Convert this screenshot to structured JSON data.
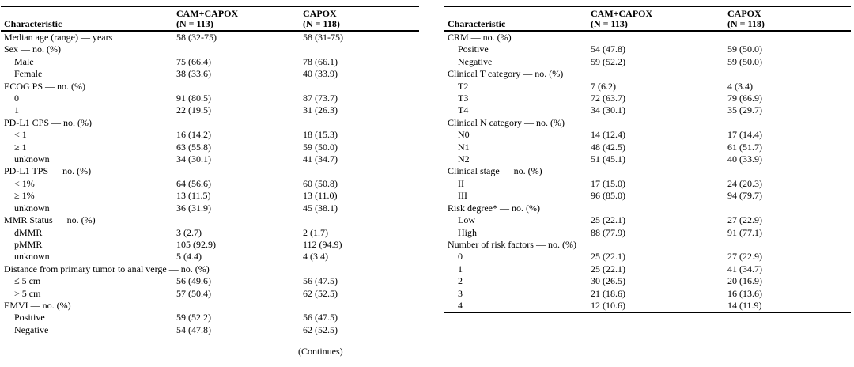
{
  "page": {
    "background": "#ffffff",
    "text_color": "#000000",
    "rule_color": "#000000"
  },
  "left_table": {
    "header": {
      "characteristic": "Characteristic",
      "arm1": [
        "CAM+CAPOX",
        "(N = 113)"
      ],
      "arm2": [
        "CAPOX",
        "(N = 118)"
      ]
    },
    "rows": [
      {
        "label": "Median age (range) — years",
        "indent": 0,
        "values": [
          "58 (32-75)",
          "58 (31-75)"
        ]
      },
      {
        "label": "Sex — no. (%)",
        "indent": 0,
        "values": [
          "",
          ""
        ]
      },
      {
        "label": "Male",
        "indent": 1,
        "values": [
          "75 (66.4)",
          "78 (66.1)"
        ]
      },
      {
        "label": "Female",
        "indent": 1,
        "values": [
          "38 (33.6)",
          "40 (33.9)"
        ]
      },
      {
        "label": "ECOG PS — no. (%)",
        "indent": 0,
        "values": [
          "",
          ""
        ]
      },
      {
        "label": "0",
        "indent": 1,
        "values": [
          "91 (80.5)",
          "87 (73.7)"
        ]
      },
      {
        "label": "1",
        "indent": 1,
        "values": [
          "22 (19.5)",
          "31 (26.3)"
        ]
      },
      {
        "label": "PD-L1 CPS — no. (%)",
        "indent": 0,
        "values": [
          "",
          ""
        ]
      },
      {
        "label": "< 1",
        "indent": 1,
        "values": [
          "16 (14.2)",
          "18 (15.3)"
        ]
      },
      {
        "label": "≥ 1",
        "indent": 1,
        "values": [
          "63 (55.8)",
          "59 (50.0)"
        ]
      },
      {
        "label": "unknown",
        "indent": 1,
        "values": [
          "34 (30.1)",
          "41 (34.7)"
        ]
      },
      {
        "label": "PD-L1 TPS — no. (%)",
        "indent": 0,
        "values": [
          "",
          ""
        ]
      },
      {
        "label": "< 1%",
        "indent": 1,
        "values": [
          "64 (56.6)",
          "60 (50.8)"
        ]
      },
      {
        "label": "≥ 1%",
        "indent": 1,
        "values": [
          "13 (11.5)",
          "13 (11.0)"
        ]
      },
      {
        "label": "unknown",
        "indent": 1,
        "values": [
          "36 (31.9)",
          "45 (38.1)"
        ]
      },
      {
        "label": "MMR Status — no. (%)",
        "indent": 0,
        "values": [
          "",
          ""
        ]
      },
      {
        "label": "dMMR",
        "indent": 1,
        "values": [
          "3 (2.7)",
          "2 (1.7)"
        ]
      },
      {
        "label": "pMMR",
        "indent": 1,
        "values": [
          "105 (92.9)",
          "112 (94.9)"
        ]
      },
      {
        "label": "unknown",
        "indent": 1,
        "values": [
          "5 (4.4)",
          "4 (3.4)"
        ]
      },
      {
        "label": "Distance from primary tumor to anal verge — no. (%)",
        "indent": 0,
        "values": [
          "",
          ""
        ]
      },
      {
        "label": "≤ 5 cm",
        "indent": 1,
        "values": [
          "56 (49.6)",
          "56 (47.5)"
        ]
      },
      {
        "label": "> 5 cm",
        "indent": 1,
        "values": [
          "57 (50.4)",
          "62 (52.5)"
        ]
      },
      {
        "label": "EMVI — no. (%)",
        "indent": 0,
        "values": [
          "",
          ""
        ]
      },
      {
        "label": "Positive",
        "indent": 1,
        "values": [
          "59 (52.2)",
          "56 (47.5)"
        ]
      },
      {
        "label": "Negative",
        "indent": 1,
        "values": [
          "54 (47.8)",
          "62 (52.5)"
        ]
      }
    ],
    "continues_note": "(Continues)"
  },
  "right_table": {
    "header": {
      "characteristic": "Characteristic",
      "arm1": [
        "CAM+CAPOX",
        "(N = 113)"
      ],
      "arm2": [
        "CAPOX",
        "(N = 118)"
      ]
    },
    "rows": [
      {
        "label": "CRM — no. (%)",
        "indent": 0,
        "values": [
          "",
          ""
        ]
      },
      {
        "label": "Positive",
        "indent": 1,
        "values": [
          "54 (47.8)",
          "59 (50.0)"
        ]
      },
      {
        "label": "Negative",
        "indent": 1,
        "values": [
          "59 (52.2)",
          "59 (50.0)"
        ]
      },
      {
        "label": "Clinical T category — no. (%)",
        "indent": 0,
        "values": [
          "",
          ""
        ]
      },
      {
        "label": "T2",
        "indent": 1,
        "values": [
          "7 (6.2)",
          "4 (3.4)"
        ]
      },
      {
        "label": "T3",
        "indent": 1,
        "values": [
          "72 (63.7)",
          "79 (66.9)"
        ]
      },
      {
        "label": "T4",
        "indent": 1,
        "values": [
          "34 (30.1)",
          "35 (29.7)"
        ]
      },
      {
        "label": "Clinical N category — no. (%)",
        "indent": 0,
        "values": [
          "",
          ""
        ]
      },
      {
        "label": "N0",
        "indent": 1,
        "values": [
          "14 (12.4)",
          "17 (14.4)"
        ]
      },
      {
        "label": "N1",
        "indent": 1,
        "values": [
          "48 (42.5)",
          "61 (51.7)"
        ]
      },
      {
        "label": "N2",
        "indent": 1,
        "values": [
          "51 (45.1)",
          "40 (33.9)"
        ]
      },
      {
        "label": "Clinical stage — no. (%)",
        "indent": 0,
        "values": [
          "",
          ""
        ]
      },
      {
        "label": "II",
        "indent": 1,
        "values": [
          "17 (15.0)",
          "24 (20.3)"
        ]
      },
      {
        "label": "III",
        "indent": 1,
        "values": [
          "96 (85.0)",
          "94 (79.7)"
        ]
      },
      {
        "label": "Risk degree* — no. (%)",
        "indent": 0,
        "values": [
          "",
          ""
        ]
      },
      {
        "label": "Low",
        "indent": 1,
        "values": [
          "25 (22.1)",
          "27 (22.9)"
        ]
      },
      {
        "label": "High",
        "indent": 1,
        "values": [
          "88 (77.9)",
          "91 (77.1)"
        ]
      },
      {
        "label": "Number of risk factors — no. (%)",
        "indent": 0,
        "values": [
          "",
          ""
        ]
      },
      {
        "label": "0",
        "indent": 1,
        "values": [
          "25 (22.1)",
          "27 (22.9)"
        ]
      },
      {
        "label": "1",
        "indent": 1,
        "values": [
          "25 (22.1)",
          "41 (34.7)"
        ]
      },
      {
        "label": "2",
        "indent": 1,
        "values": [
          "30 (26.5)",
          "20 (16.9)"
        ]
      },
      {
        "label": "3",
        "indent": 1,
        "values": [
          "21 (18.6)",
          "16 (13.6)"
        ]
      },
      {
        "label": "4",
        "indent": 1,
        "values": [
          "12 (10.6)",
          "14 (11.9)"
        ]
      }
    ]
  }
}
